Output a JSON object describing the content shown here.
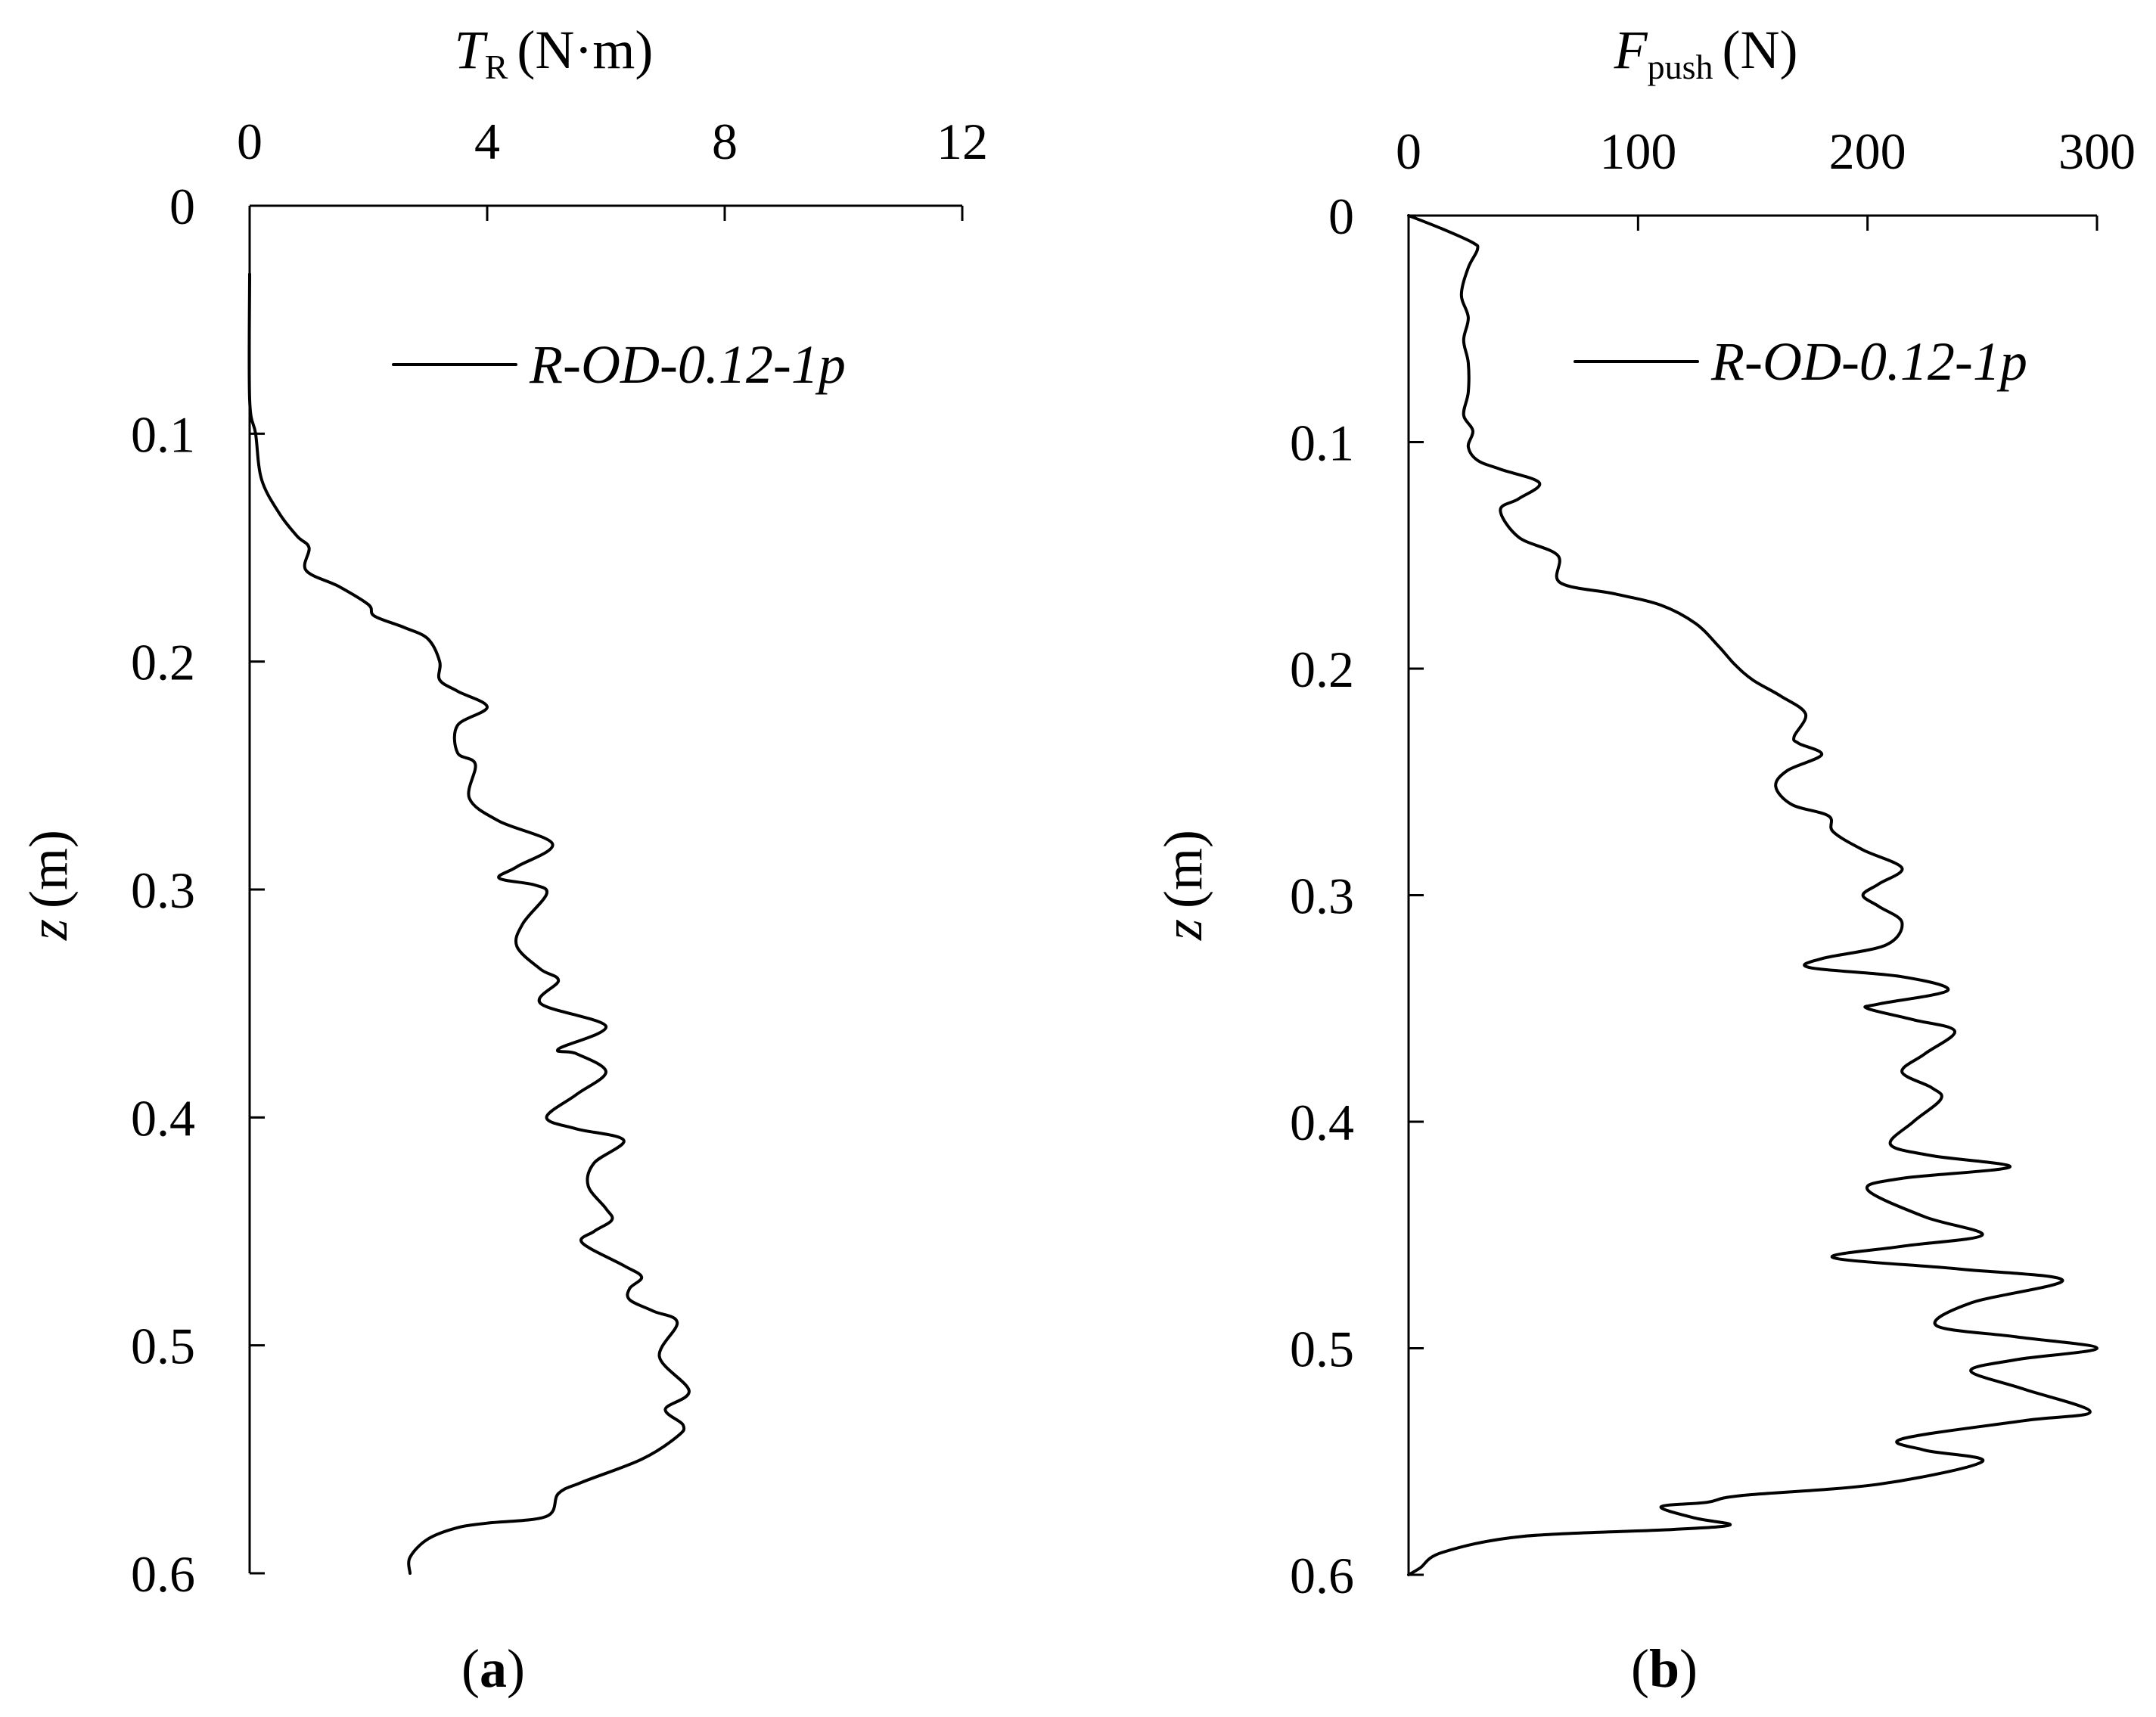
{
  "chart_data": [
    {
      "type": "line",
      "panel_label": "a",
      "xlabel_symbol": "T",
      "xlabel_subscript": "R",
      "xlabel_unit": "(N·m)",
      "ylabel_symbol": "z",
      "ylabel_unit": "(m)",
      "x_axis_position": "top",
      "y_axis_inverted": true,
      "xlim": [
        0,
        12
      ],
      "ylim": [
        0,
        0.6
      ],
      "xticks": [
        "0",
        "4",
        "8",
        "12"
      ],
      "yticks": [
        "0",
        "0.1",
        "0.2",
        "0.3",
        "0.4",
        "0.5",
        "0.6"
      ],
      "legend_position": "top-right",
      "grid": false,
      "series": [
        {
          "name": "R-OD-0.12-1p",
          "points": [
            [
              0,
              0.03
            ],
            [
              0,
              0.085
            ],
            [
              0.1,
              0.1
            ],
            [
              0.2,
              0.12
            ],
            [
              0.5,
              0.135
            ],
            [
              0.8,
              0.145
            ],
            [
              1.0,
              0.15
            ],
            [
              0.95,
              0.16
            ],
            [
              1.5,
              0.167
            ],
            [
              2.0,
              0.175
            ],
            [
              2.1,
              0.18
            ],
            [
              2.6,
              0.185
            ],
            [
              3.0,
              0.19
            ],
            [
              3.2,
              0.2
            ],
            [
              3.2,
              0.208
            ],
            [
              3.5,
              0.213
            ],
            [
              4.0,
              0.22
            ],
            [
              3.5,
              0.228
            ],
            [
              3.5,
              0.24
            ],
            [
              3.8,
              0.245
            ],
            [
              3.7,
              0.26
            ],
            [
              4.2,
              0.27
            ],
            [
              5.1,
              0.28
            ],
            [
              4.5,
              0.29
            ],
            [
              4.2,
              0.295
            ],
            [
              4.8,
              0.298
            ],
            [
              5.0,
              0.302
            ],
            [
              4.6,
              0.315
            ],
            [
              4.5,
              0.325
            ],
            [
              4.9,
              0.335
            ],
            [
              5.2,
              0.34
            ],
            [
              4.9,
              0.35
            ],
            [
              6.0,
              0.36
            ],
            [
              5.2,
              0.37
            ],
            [
              5.5,
              0.372
            ],
            [
              6.0,
              0.38
            ],
            [
              5.5,
              0.39
            ],
            [
              5.0,
              0.4
            ],
            [
              5.5,
              0.405
            ],
            [
              6.3,
              0.41
            ],
            [
              5.8,
              0.42
            ],
            [
              5.7,
              0.43
            ],
            [
              6.0,
              0.44
            ],
            [
              6.1,
              0.445
            ],
            [
              5.8,
              0.45
            ],
            [
              5.6,
              0.455
            ],
            [
              6.3,
              0.465
            ],
            [
              6.6,
              0.47
            ],
            [
              6.4,
              0.475
            ],
            [
              6.4,
              0.48
            ],
            [
              6.8,
              0.485
            ],
            [
              7.2,
              0.49
            ],
            [
              6.9,
              0.505
            ],
            [
              7.4,
              0.52
            ],
            [
              7.0,
              0.528
            ],
            [
              7.3,
              0.535
            ],
            [
              7.2,
              0.54
            ],
            [
              6.6,
              0.55
            ],
            [
              5.6,
              0.56
            ],
            [
              5.2,
              0.565
            ],
            [
              5.0,
              0.575
            ],
            [
              4.0,
              0.578
            ],
            [
              3.5,
              0.58
            ],
            [
              3.0,
              0.585
            ],
            [
              2.7,
              0.593
            ],
            [
              2.7,
              0.6
            ]
          ]
        }
      ]
    },
    {
      "type": "line",
      "panel_label": "b",
      "xlabel_symbol": "F",
      "xlabel_subscript": "push",
      "xlabel_unit": "(N)",
      "ylabel_symbol": "z",
      "ylabel_unit": "(m)",
      "x_axis_position": "top",
      "y_axis_inverted": true,
      "xlim": [
        0,
        300
      ],
      "ylim": [
        0,
        0.6
      ],
      "xticks": [
        "0",
        "100",
        "200",
        "300"
      ],
      "yticks": [
        "0",
        "0.1",
        "0.2",
        "0.3",
        "0.4",
        "0.5",
        "0.6"
      ],
      "legend_position": "top-right",
      "grid": false,
      "series": [
        {
          "name": "R-OD-0.12-1p",
          "points": [
            [
              0,
              0.0
            ],
            [
              15,
              0.006
            ],
            [
              28,
              0.012
            ],
            [
              30,
              0.015
            ],
            [
              26,
              0.023
            ],
            [
              23,
              0.035
            ],
            [
              26,
              0.045
            ],
            [
              24,
              0.055
            ],
            [
              26,
              0.065
            ],
            [
              26,
              0.078
            ],
            [
              24,
              0.088
            ],
            [
              28,
              0.095
            ],
            [
              26,
              0.102
            ],
            [
              30,
              0.108
            ],
            [
              40,
              0.112
            ],
            [
              57,
              0.118
            ],
            [
              48,
              0.125
            ],
            [
              40,
              0.13
            ],
            [
              48,
              0.142
            ],
            [
              65,
              0.15
            ],
            [
              66,
              0.162
            ],
            [
              90,
              0.167
            ],
            [
              110,
              0.172
            ],
            [
              125,
              0.18
            ],
            [
              135,
              0.19
            ],
            [
              142,
              0.198
            ],
            [
              150,
              0.205
            ],
            [
              162,
              0.212
            ],
            [
              173,
              0.22
            ],
            [
              168,
              0.23
            ],
            [
              170,
              0.233
            ],
            [
              180,
              0.238
            ],
            [
              165,
              0.245
            ],
            [
              160,
              0.252
            ],
            [
              167,
              0.26
            ],
            [
              183,
              0.265
            ],
            [
              185,
              0.272
            ],
            [
              198,
              0.28
            ],
            [
              215,
              0.288
            ],
            [
              205,
              0.295
            ],
            [
              198,
              0.3
            ],
            [
              205,
              0.305
            ],
            [
              215,
              0.312
            ],
            [
              208,
              0.322
            ],
            [
              180,
              0.328
            ],
            [
              175,
              0.332
            ],
            [
              215,
              0.336
            ],
            [
              235,
              0.342
            ],
            [
              205,
              0.348
            ],
            [
              200,
              0.35
            ],
            [
              220,
              0.355
            ],
            [
              238,
              0.36
            ],
            [
              225,
              0.37
            ],
            [
              215,
              0.378
            ],
            [
              228,
              0.385
            ],
            [
              232,
              0.39
            ],
            [
              220,
              0.4
            ],
            [
              210,
              0.41
            ],
            [
              228,
              0.415
            ],
            [
              262,
              0.42
            ],
            [
              215,
              0.425
            ],
            [
              200,
              0.43
            ],
            [
              225,
              0.442
            ],
            [
              250,
              0.45
            ],
            [
              215,
              0.455
            ],
            [
              185,
              0.46
            ],
            [
              240,
              0.465
            ],
            [
              285,
              0.47
            ],
            [
              245,
              0.48
            ],
            [
              230,
              0.49
            ],
            [
              265,
              0.495
            ],
            [
              300,
              0.5
            ],
            [
              265,
              0.505
            ],
            [
              245,
              0.51
            ],
            [
              268,
              0.518
            ],
            [
              297,
              0.528
            ],
            [
              268,
              0.532
            ],
            [
              215,
              0.54
            ],
            [
              225,
              0.545
            ],
            [
              250,
              0.55
            ],
            [
              205,
              0.56
            ],
            [
              145,
              0.565
            ],
            [
              130,
              0.568
            ],
            [
              110,
              0.57
            ],
            [
              125,
              0.575
            ],
            [
              140,
              0.578
            ],
            [
              115,
              0.58
            ],
            [
              50,
              0.583
            ],
            [
              15,
              0.59
            ],
            [
              5,
              0.597
            ],
            [
              0,
              0.6
            ]
          ]
        }
      ]
    }
  ]
}
